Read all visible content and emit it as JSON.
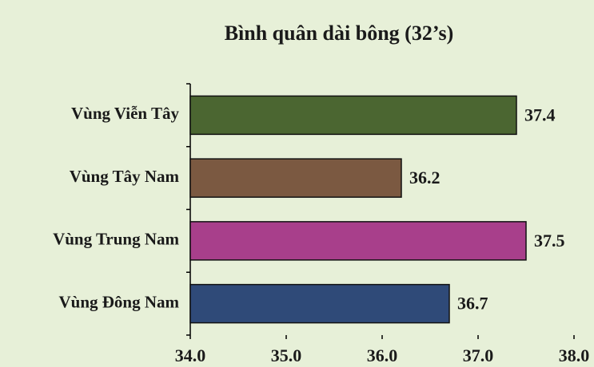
{
  "chart_data": {
    "type": "bar",
    "orientation": "horizontal",
    "title": "Bình quân dài bông (32’s)",
    "categories": [
      "Vùng Viễn Tây",
      "Vùng Tây Nam",
      "Vùng Trung Nam",
      "Vùng Đông Nam"
    ],
    "values": [
      37.4,
      36.2,
      37.5,
      36.7
    ],
    "colors": [
      "#4b6631",
      "#7b5941",
      "#a83f8b",
      "#2f4a78"
    ],
    "xlim": [
      34,
      38
    ],
    "xticks": [
      {
        "value": 34,
        "label": "34.0"
      },
      {
        "value": 35,
        "label": "35.0"
      },
      {
        "value": 36,
        "label": "36.0"
      },
      {
        "value": 37,
        "label": "37.0"
      },
      {
        "value": 38,
        "label": "38.0"
      }
    ]
  }
}
